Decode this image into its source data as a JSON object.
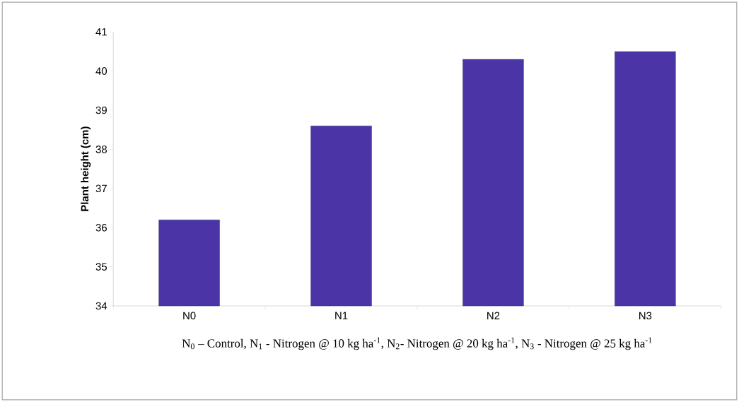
{
  "chart_data": {
    "type": "bar",
    "ylabel": "**Plant height (cm)**",
    "categories": [
      "N0",
      "N1",
      "N2",
      "N3"
    ],
    "values": [
      36.2,
      38.6,
      40.3,
      40.5
    ],
    "color": "#4b35a6",
    "ylim": [
      34,
      41
    ],
    "yticks": [
      34,
      35,
      36,
      37,
      38,
      39,
      40,
      41
    ],
    "annotations": [
      "N$_{0}$ – Control, N$_{1}$ - Nitrogen @ 10 kg ha$^{-1}$, N$_{2}$- Nitrogen @ 20 kg ha$^{-1}$, N$_{3}$ - Nitrogen @ 25 kg ha$^{-1}$"
    ]
  }
}
